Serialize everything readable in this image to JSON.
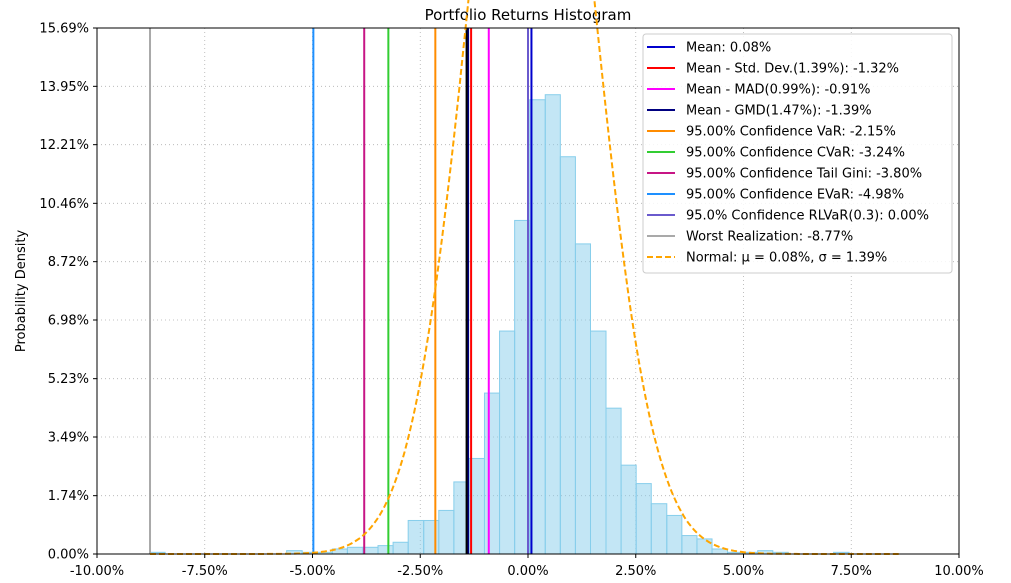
{
  "chart_data": {
    "type": "bar",
    "title": "Portfolio Returns Histogram",
    "xlabel": "",
    "ylabel": "Probability Density",
    "xlim": [
      -10.0,
      10.0
    ],
    "ylim": [
      0.0,
      15.69
    ],
    "x_ticks": [
      -10.0,
      -7.5,
      -5.0,
      -2.5,
      0.0,
      2.5,
      5.0,
      7.5,
      10.0
    ],
    "x_tick_labels": [
      "-10.00%",
      "-7.50%",
      "-5.00%",
      "-2.50%",
      "0.00%",
      "2.50%",
      "5.00%",
      "7.50%",
      "10.00%"
    ],
    "y_ticks": [
      0.0,
      1.74,
      3.49,
      5.23,
      6.98,
      8.72,
      10.46,
      12.21,
      13.95,
      15.69
    ],
    "y_tick_labels": [
      "0.00%",
      "1.74%",
      "3.49%",
      "5.23%",
      "6.98%",
      "8.72%",
      "10.46%",
      "12.21%",
      "13.95%",
      "15.69%"
    ],
    "grid": true,
    "legend_position": "top-right",
    "histogram": {
      "color": "#87ceeb",
      "bin_edges": [
        -8.77,
        -8.42,
        -8.06,
        -7.71,
        -7.36,
        -7.01,
        -6.65,
        -6.3,
        -5.95,
        -5.6,
        -5.24,
        -4.89,
        -4.54,
        -4.19,
        -3.83,
        -3.48,
        -3.13,
        -2.78,
        -2.42,
        -2.07,
        -1.72,
        -1.37,
        -1.01,
        -0.66,
        -0.31,
        0.04,
        0.4,
        0.75,
        1.1,
        1.45,
        1.81,
        2.16,
        2.51,
        2.86,
        3.22,
        3.57,
        3.92,
        4.27,
        4.63,
        4.98,
        5.33,
        5.68,
        6.04,
        6.39,
        6.74,
        7.09,
        7.45,
        7.8,
        8.15,
        8.5
      ],
      "densities": [
        0.05,
        0,
        0,
        0,
        0,
        0,
        0,
        0,
        0,
        0.1,
        0.05,
        0.05,
        0.15,
        0.2,
        0.2,
        0.25,
        0.35,
        1.0,
        1.0,
        1.3,
        2.15,
        2.85,
        4.8,
        6.65,
        9.95,
        13.55,
        13.7,
        11.85,
        9.25,
        6.65,
        4.35,
        2.65,
        2.1,
        1.5,
        1.15,
        0.55,
        0.45,
        0.15,
        0.05,
        0.05,
        0.1,
        0.05,
        0,
        0,
        0,
        0.05,
        0,
        0,
        0
      ]
    },
    "normal_curve": {
      "mu": 0.08,
      "sigma": 1.39,
      "x_range": [
        -8.77,
        8.6
      ],
      "color": "#ffa500"
    },
    "vlines": [
      {
        "label": "Mean: 0.08%",
        "x": 0.08,
        "color": "#0000cd"
      },
      {
        "label": "Mean - Std. Dev.(1.39%): -1.32%",
        "x": -1.32,
        "color": "#ff0000"
      },
      {
        "label": "Mean - MAD(0.99%): -0.91%",
        "x": -0.91,
        "color": "#ff00ff"
      },
      {
        "label": "Mean - GMD(1.47%): -1.39%",
        "x": -1.39,
        "color": "#000080"
      },
      {
        "label": "95.00% Confidence VaR: -2.15%",
        "x": -2.15,
        "color": "#ff8c00"
      },
      {
        "label": "95.00% Confidence CVaR: -3.24%",
        "x": -3.24,
        "color": "#32cd32"
      },
      {
        "label": "95.00% Confidence Tail Gini: -3.80%",
        "x": -3.8,
        "color": "#c71585"
      },
      {
        "label": "95.00% Confidence EVaR: -4.98%",
        "x": -4.98,
        "color": "#1e90ff"
      },
      {
        "label": "95.0% Confidence RLVaR(0.3): 0.00%",
        "x": 0.0,
        "color": "#6a5acd"
      },
      {
        "label": "Worst Realization: -8.77%",
        "x": -8.77,
        "color": "#a9a9a9"
      }
    ],
    "normal_legend_label": "Normal: μ = 0.08%, σ = 1.39%",
    "extra_black_line_x": -1.39
  }
}
